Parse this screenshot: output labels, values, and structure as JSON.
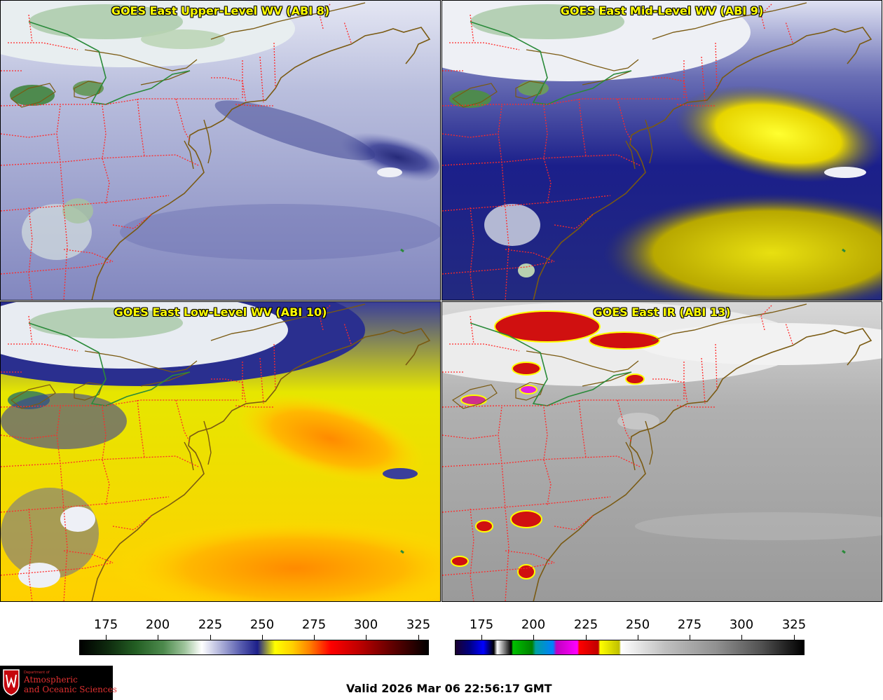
{
  "panels": [
    {
      "title": "GOES East Upper-Level WV (ABI 8)"
    },
    {
      "title": "GOES East Mid-Level WV (ABI 9)"
    },
    {
      "title": "GOES East Low-Level WV (ABI 10)"
    },
    {
      "title": "GOES East IR (ABI 13)"
    }
  ],
  "colorbars": [
    {
      "ticks": [
        "175",
        "200",
        "225",
        "250",
        "275",
        "300",
        "325"
      ],
      "range": [
        163,
        331
      ]
    },
    {
      "ticks": [
        "175",
        "200",
        "225",
        "250",
        "275",
        "300",
        "325"
      ],
      "range": [
        163,
        331
      ]
    }
  ],
  "colors": {
    "title_text": "#ffff00",
    "border_state": "#ff2a2a",
    "coastline": "#7a5a12",
    "border_canada": "#2a8a3a"
  },
  "logo": {
    "small_text": "Department of",
    "line1": "Atmospheric",
    "line2": "and Oceanic Sciences"
  },
  "valid": "Valid 2026 Mar 06 22:56:17 GMT"
}
